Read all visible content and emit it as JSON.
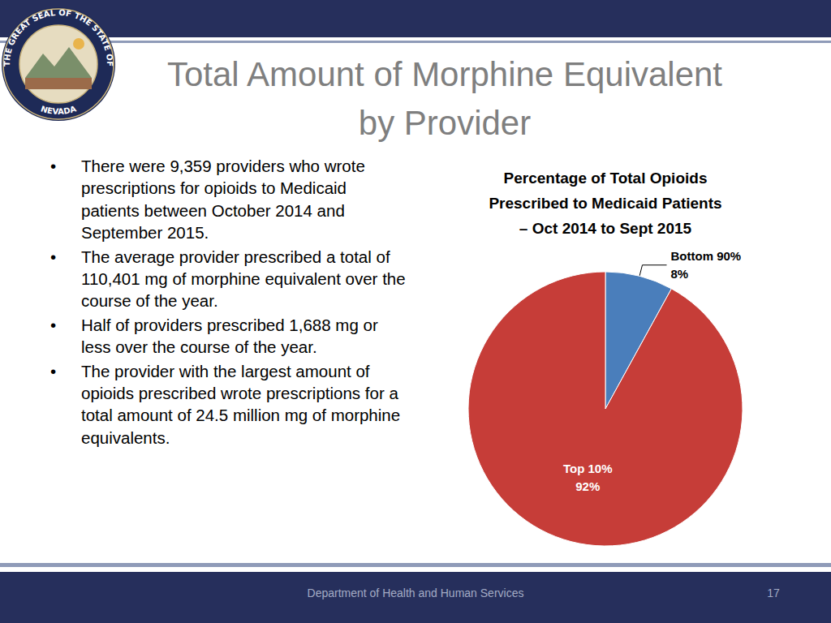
{
  "header": {
    "title": [
      "Total Amount of Morphine Equivalent",
      "by Provider"
    ],
    "seal": {
      "text": "THE GREAT SEAL OF THE STATE OF",
      "state": "NEVADA"
    }
  },
  "bullets": [
    "There were 9,359 providers who wrote prescriptions for opioids to Medicaid patients between October 2014 and September 2015.",
    "The average provider prescribed a total of 110,401 mg of morphine equivalent over the course of the year.",
    "Half of providers prescribed 1,688 mg or less over the course of the year.",
    "The provider with the largest amount of opioids prescribed wrote prescriptions for a total amount of 24.5 million mg of morphine equivalents."
  ],
  "chart_data": {
    "type": "pie",
    "title": "Percentage of Total Opioids\nPrescribed to Medicaid Patients\n– Oct 2014 to Sept 2015",
    "categories": [
      "Bottom 90%",
      "Top 10%"
    ],
    "values": [
      8,
      92
    ],
    "value_labels": [
      "8%",
      "92%"
    ],
    "colors": [
      "#4a7ebb",
      "#c63d38"
    ],
    "data_labels": true
  },
  "footer": {
    "text": "Department of Health and Human Services",
    "page": 17
  }
}
